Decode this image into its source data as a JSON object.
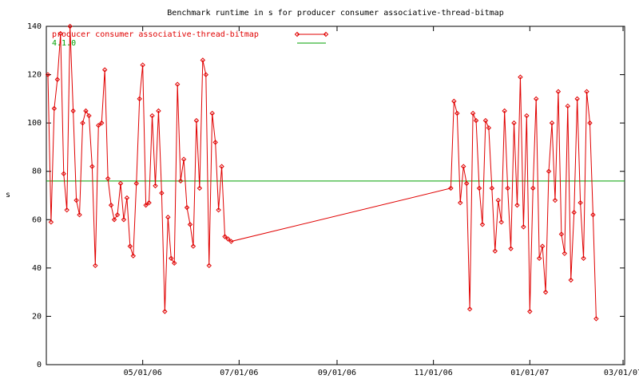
{
  "chart_data": {
    "type": "line",
    "title": "Benchmark runtime in s for producer consumer associative-thread-bitmap",
    "y_label": "s",
    "xlim": [
      "2006-03-01",
      "2007-03-02"
    ],
    "xticks": [
      {
        "value": "2006-05-01",
        "label": "05/01/06"
      },
      {
        "value": "2006-07-01",
        "label": "07/01/06"
      },
      {
        "value": "2006-09-01",
        "label": "09/01/06"
      },
      {
        "value": "2006-11-01",
        "label": "11/01/06"
      },
      {
        "value": "2007-01-01",
        "label": "01/01/07"
      },
      {
        "value": "2007-03-01",
        "label": "03/01/07"
      }
    ],
    "ylim": [
      0,
      140
    ],
    "yticks": [
      0,
      20,
      40,
      60,
      80,
      100,
      120,
      140
    ],
    "legend": "top-left",
    "x": [
      "2006-03-02",
      "2006-03-04",
      "2006-03-06",
      "2006-03-08",
      "2006-03-10",
      "2006-03-12",
      "2006-03-14",
      "2006-03-16",
      "2006-03-18",
      "2006-03-20",
      "2006-03-22",
      "2006-03-24",
      "2006-03-26",
      "2006-03-28",
      "2006-03-30",
      "2006-04-01",
      "2006-04-03",
      "2006-04-05",
      "2006-04-07",
      "2006-04-09",
      "2006-04-11",
      "2006-04-13",
      "2006-04-15",
      "2006-04-17",
      "2006-04-19",
      "2006-04-21",
      "2006-04-23",
      "2006-04-25",
      "2006-04-27",
      "2006-04-29",
      "2006-05-01",
      "2006-05-03",
      "2006-05-05",
      "2006-05-07",
      "2006-05-09",
      "2006-05-11",
      "2006-05-13",
      "2006-05-15",
      "2006-05-17",
      "2006-05-19",
      "2006-05-21",
      "2006-05-23",
      "2006-05-25",
      "2006-05-27",
      "2006-05-29",
      "2006-05-31",
      "2006-06-02",
      "2006-06-04",
      "2006-06-06",
      "2006-06-08",
      "2006-06-10",
      "2006-06-12",
      "2006-06-14",
      "2006-06-16",
      "2006-06-18",
      "2006-06-20",
      "2006-06-22",
      "2006-06-24",
      "2006-06-26",
      "2006-11-12",
      "2006-11-14",
      "2006-11-16",
      "2006-11-18",
      "2006-11-20",
      "2006-11-22",
      "2006-11-24",
      "2006-11-26",
      "2006-11-28",
      "2006-11-30",
      "2006-12-02",
      "2006-12-04",
      "2006-12-06",
      "2006-12-08",
      "2006-12-10",
      "2006-12-12",
      "2006-12-14",
      "2006-12-16",
      "2006-12-18",
      "2006-12-20",
      "2006-12-22",
      "2006-12-24",
      "2006-12-26",
      "2006-12-28",
      "2006-12-30",
      "2007-01-01",
      "2007-01-03",
      "2007-01-05",
      "2007-01-07",
      "2007-01-09",
      "2007-01-11",
      "2007-01-13",
      "2007-01-15",
      "2007-01-17",
      "2007-01-19",
      "2007-01-21",
      "2007-01-23",
      "2007-01-25",
      "2007-01-27",
      "2007-01-29",
      "2007-01-31",
      "2007-02-02",
      "2007-02-04",
      "2007-02-06",
      "2007-02-08",
      "2007-02-10",
      "2007-02-12"
    ],
    "series": [
      {
        "name": "producer consumer associative-thread-bitmap",
        "color": "#e00000",
        "values": [
          120,
          59,
          106,
          118,
          137,
          79,
          64,
          140,
          105,
          68,
          62,
          100,
          105,
          103,
          82,
          41,
          99,
          100,
          122,
          77,
          66,
          60,
          62,
          75,
          60,
          69,
          49,
          45,
          75,
          110,
          124,
          66,
          67,
          103,
          74,
          105,
          71,
          22,
          61,
          44,
          42,
          116,
          76,
          85,
          65,
          58,
          49,
          101,
          73,
          126,
          120,
          41,
          104,
          92,
          64,
          82,
          53,
          52,
          51,
          73,
          109,
          104,
          67,
          82,
          75,
          23,
          104,
          101,
          73,
          58,
          101,
          98,
          73,
          47,
          68,
          59,
          105,
          73,
          48,
          100,
          66,
          119,
          57,
          103,
          22,
          73,
          110,
          44,
          49,
          30,
          80,
          100,
          68,
          113,
          54,
          46,
          107,
          35,
          63,
          110,
          67,
          44,
          113,
          100,
          62,
          19
        ]
      }
    ],
    "reference": {
      "name": "4.1.0",
      "value": 76,
      "color": "#00a000"
    }
  }
}
